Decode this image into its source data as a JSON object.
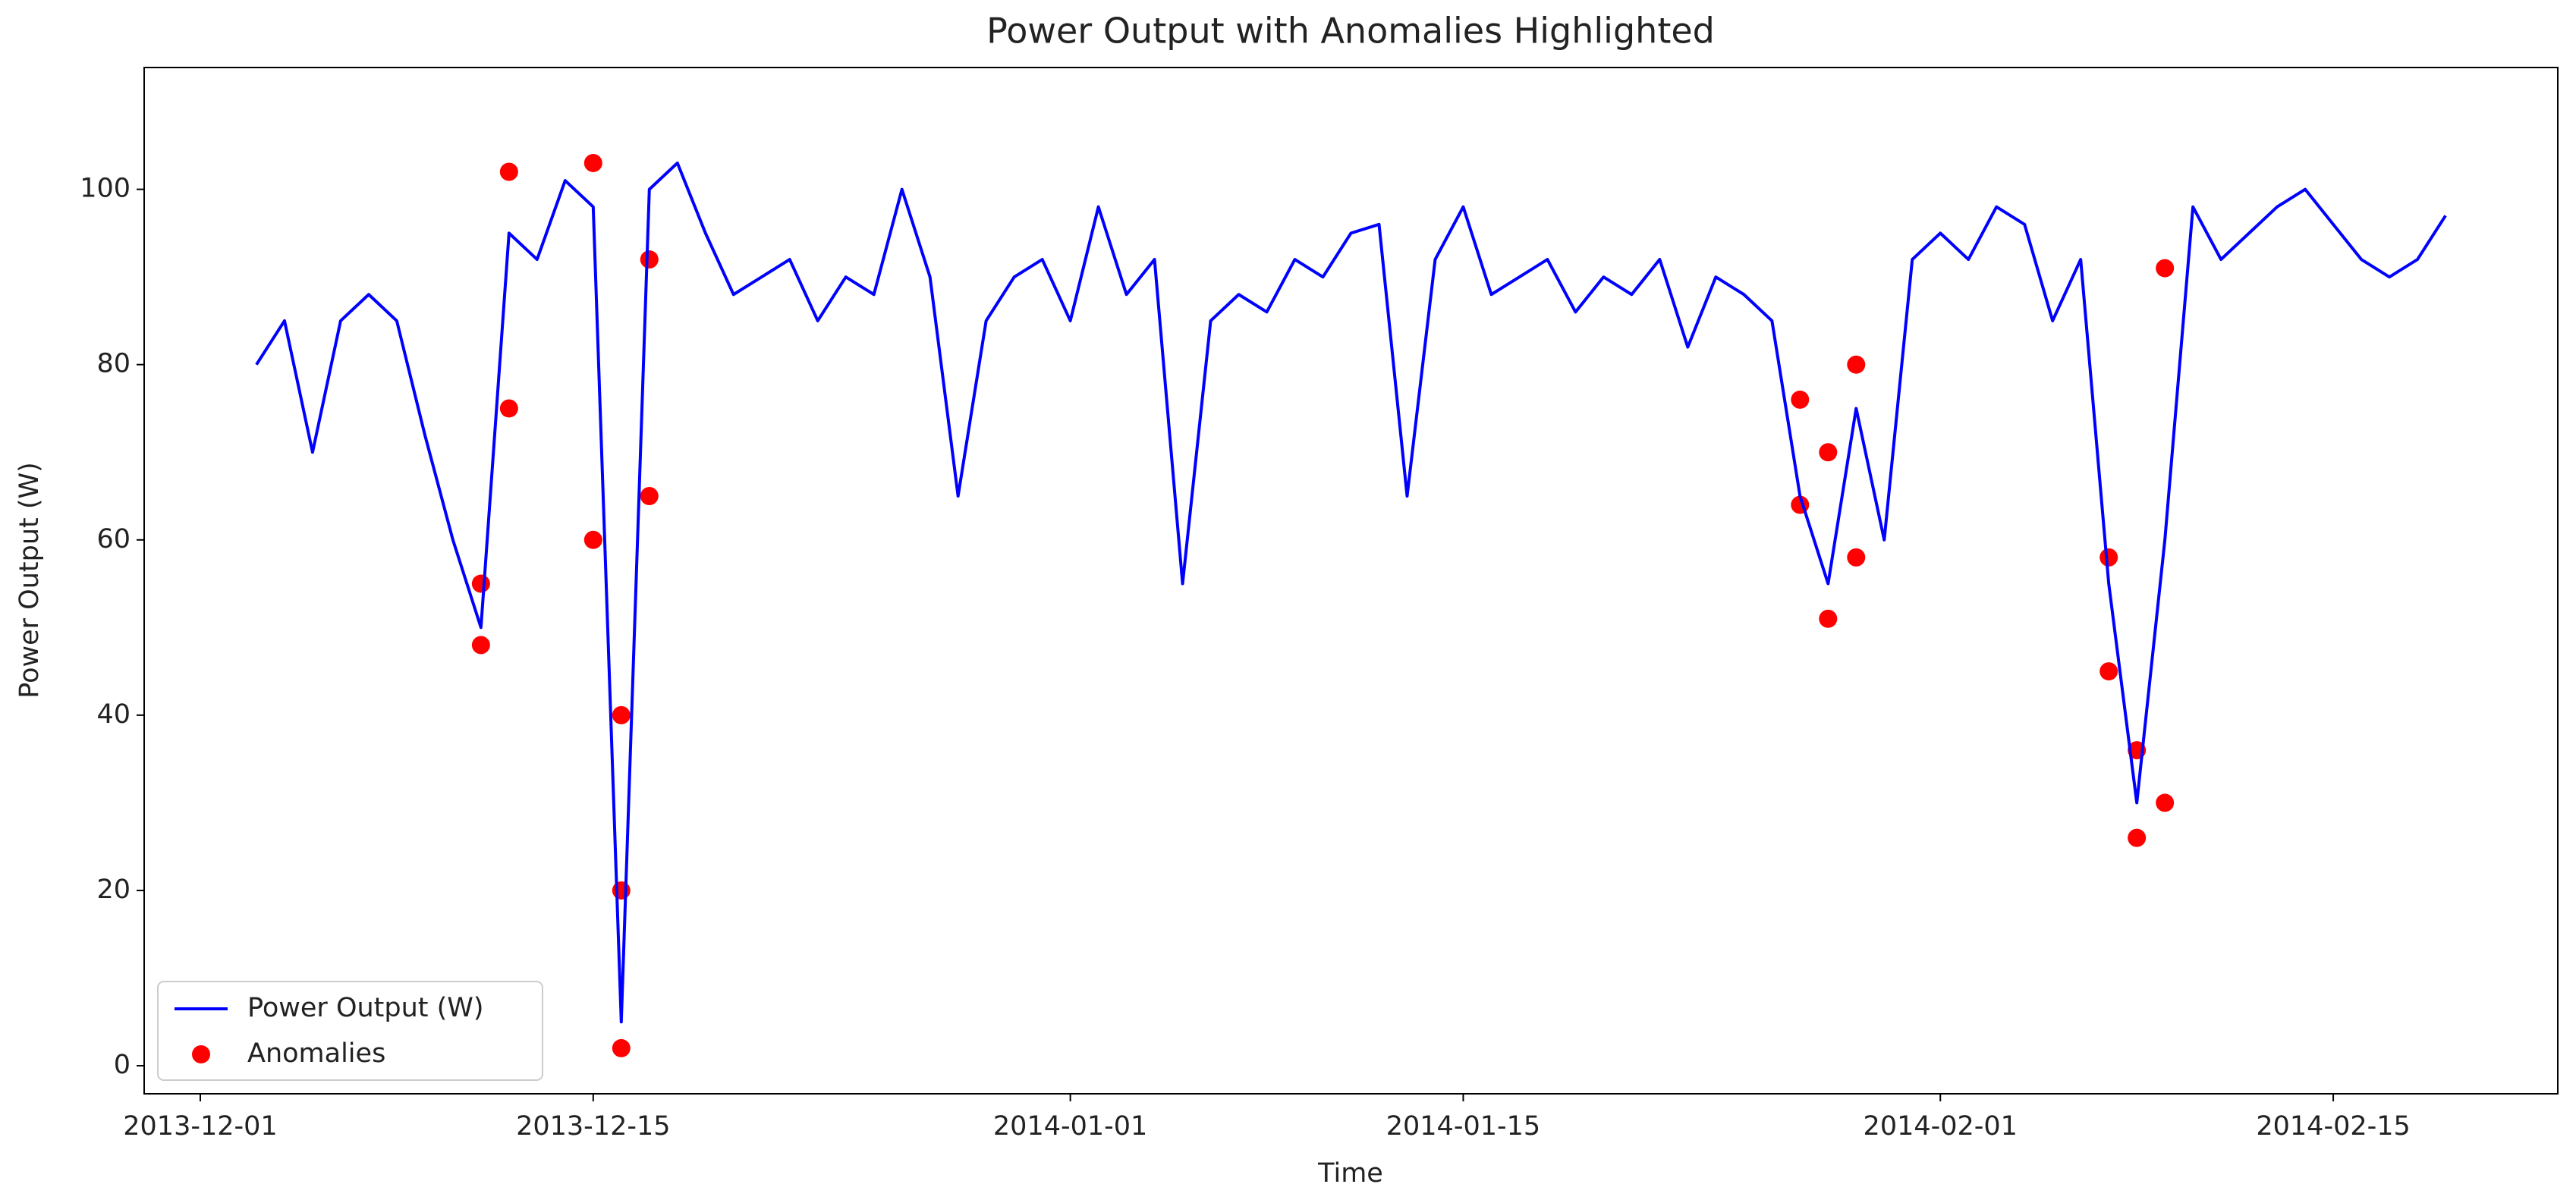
{
  "chart_data": {
    "type": "line",
    "title": "Power Output with Anomalies Highlighted",
    "x_label": "Time",
    "y_label": "Power Output (W)",
    "xlim": [
      "2013-11-29",
      "2014-02-23"
    ],
    "xticks": [
      "2013-12-01",
      "2013-12-15",
      "2014-01-01",
      "2014-01-15",
      "2014-02-01",
      "2014-02-15"
    ],
    "ylim": [
      -3.2,
      113.9
    ],
    "yticks": [
      0,
      20,
      40,
      60,
      80,
      100
    ],
    "grid": false,
    "legend": "lower left",
    "series": [
      {
        "name": "Power Output (W)",
        "type": "line",
        "color": "#0000ff",
        "x": [
          "2013-12-03",
          "2013-12-04",
          "2013-12-05",
          "2013-12-06",
          "2013-12-07",
          "2013-12-08",
          "2013-12-09",
          "2013-12-10",
          "2013-12-11",
          "2013-12-12",
          "2013-12-13",
          "2013-12-14",
          "2013-12-15",
          "2013-12-16",
          "2013-12-17",
          "2013-12-18",
          "2013-12-19",
          "2013-12-20",
          "2013-12-21",
          "2013-12-22",
          "2013-12-23",
          "2013-12-24",
          "2013-12-25",
          "2013-12-26",
          "2013-12-27",
          "2013-12-28",
          "2013-12-29",
          "2013-12-30",
          "2013-12-31",
          "2014-01-01",
          "2014-01-02",
          "2014-01-03",
          "2014-01-04",
          "2014-01-05",
          "2014-01-06",
          "2014-01-07",
          "2014-01-08",
          "2014-01-09",
          "2014-01-10",
          "2014-01-11",
          "2014-01-12",
          "2014-01-13",
          "2014-01-14",
          "2014-01-15",
          "2014-01-16",
          "2014-01-17",
          "2014-01-18",
          "2014-01-19",
          "2014-01-20",
          "2014-01-21",
          "2014-01-22",
          "2014-01-23",
          "2014-01-24",
          "2014-01-25",
          "2014-01-26",
          "2014-01-27",
          "2014-01-28",
          "2014-01-29",
          "2014-01-30",
          "2014-01-31",
          "2014-02-01",
          "2014-02-02",
          "2014-02-03",
          "2014-02-04",
          "2014-02-05",
          "2014-02-06",
          "2014-02-07",
          "2014-02-08",
          "2014-02-09",
          "2014-02-10",
          "2014-02-11",
          "2014-02-12",
          "2014-02-13",
          "2014-02-14",
          "2014-02-15",
          "2014-02-16",
          "2014-02-17",
          "2014-02-18",
          "2014-02-19"
        ],
        "values": [
          80,
          85,
          70,
          85,
          88,
          85,
          72,
          60,
          50,
          95,
          92,
          101,
          98,
          5,
          100,
          103,
          95,
          88,
          90,
          92,
          85,
          90,
          88,
          100,
          90,
          65,
          85,
          90,
          92,
          85,
          98,
          88,
          92,
          55,
          85,
          88,
          86,
          92,
          90,
          95,
          96,
          65,
          92,
          98,
          88,
          90,
          92,
          86,
          90,
          88,
          92,
          82,
          90,
          88,
          85,
          65,
          55,
          75,
          60,
          92,
          95,
          92,
          98,
          96,
          85,
          92,
          55,
          30,
          60,
          98,
          92,
          95,
          98,
          100,
          96,
          92,
          90,
          92,
          97
        ]
      },
      {
        "name": "Anomalies",
        "type": "scatter",
        "color": "#ff0000",
        "x": [
          "2013-12-11",
          "2013-12-11",
          "2013-12-12",
          "2013-12-12",
          "2013-12-15",
          "2013-12-15",
          "2013-12-16",
          "2013-12-16",
          "2013-12-16",
          "2013-12-17",
          "2013-12-17",
          "2014-01-27",
          "2014-01-27",
          "2014-01-28",
          "2014-01-28",
          "2014-01-29",
          "2014-01-29",
          "2014-02-07",
          "2014-02-07",
          "2014-02-08",
          "2014-02-08",
          "2014-02-09",
          "2014-02-09"
        ],
        "values": [
          48,
          55,
          75,
          102,
          103,
          60,
          2,
          20,
          40,
          65,
          92,
          64,
          76,
          51,
          70,
          58,
          80,
          58,
          45,
          26,
          36,
          30,
          91
        ]
      }
    ]
  }
}
